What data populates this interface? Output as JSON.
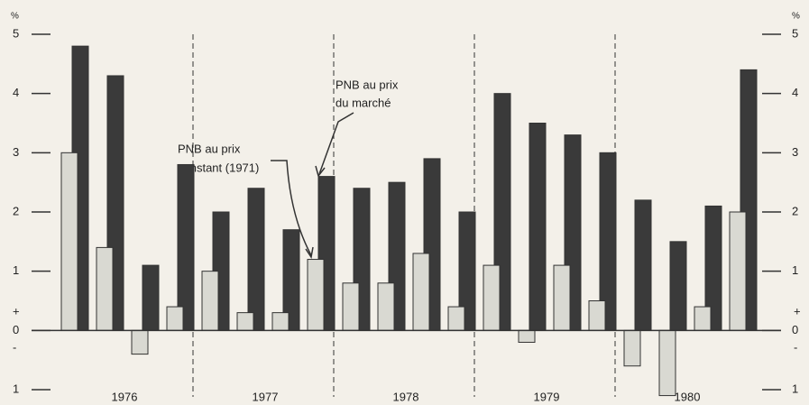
{
  "chart_data": {
    "type": "bar",
    "unit": "%",
    "sign_plus": "+",
    "sign_minus": "-",
    "categories": [
      null,
      null,
      null,
      null,
      null,
      null,
      null,
      null,
      null,
      null,
      null,
      null,
      null,
      null,
      null,
      null,
      null,
      null,
      null,
      null
    ],
    "year_labels": [
      "1976",
      "1977",
      "1978",
      "1979",
      "1980"
    ],
    "series": [
      {
        "color": "#d9d9d2",
        "values": [
          3.0,
          1.4,
          -0.4,
          0.4,
          1.0,
          0.3,
          0.3,
          1.2,
          0.8,
          0.8,
          1.3,
          0.4,
          1.1,
          -0.2,
          1.1,
          0.5,
          -0.6,
          -1.1,
          0.4,
          2.0
        ]
      },
      {
        "color": "#3a3a3a",
        "values": [
          4.8,
          4.3,
          1.1,
          2.8,
          2.0,
          2.4,
          1.7,
          2.6,
          2.4,
          2.5,
          2.9,
          2.0,
          4.0,
          3.5,
          3.3,
          3.0,
          2.2,
          1.5,
          2.1,
          4.4
        ]
      }
    ],
    "annotations": [
      {
        "lines": [
          "PNB au prix",
          "constant (1971)"
        ]
      },
      {
        "lines": [
          "PNB au prix",
          "du marché"
        ]
      }
    ],
    "ylim": [
      -1,
      5
    ],
    "yticks": [
      {
        "value": -1,
        "label": "1"
      },
      0,
      1,
      2,
      3,
      4,
      5
    ]
  }
}
